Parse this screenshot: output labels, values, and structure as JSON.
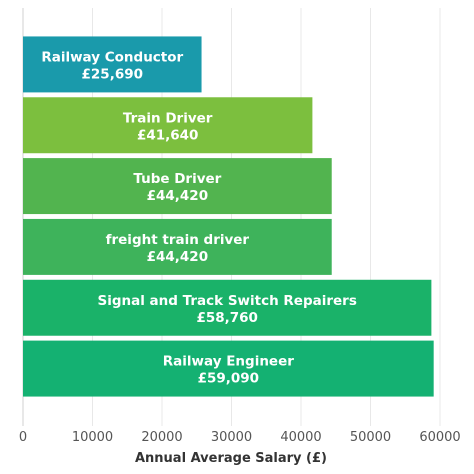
{
  "chart_data": {
    "type": "bar",
    "orientation": "horizontal",
    "title": "",
    "xlabel": "Annual Average Salary (£)",
    "ylabel": "",
    "xlim": [
      0,
      60000
    ],
    "xticks": [
      0,
      10000,
      20000,
      30000,
      40000,
      50000,
      60000
    ],
    "grid": true,
    "legend": "none",
    "bars": [
      {
        "category": "Railway Conductor",
        "value": 25690,
        "value_label": "£25,690",
        "color": "#1a9aab"
      },
      {
        "category": "Train Driver",
        "value": 41640,
        "value_label": "£41,640",
        "color": "#7cbf3e"
      },
      {
        "category": "Tube Driver",
        "value": 44420,
        "value_label": "£44,420",
        "color": "#52b44f"
      },
      {
        "category": "freight train driver",
        "value": 44420,
        "value_label": "£44,420",
        "color": "#3eb35b"
      },
      {
        "category": "Signal and Track Switch Repairers",
        "value": 58760,
        "value_label": "£58,760",
        "color": "#1ab269"
      },
      {
        "category": "Railway Engineer",
        "value": 59090,
        "value_label": "£59,090",
        "color": "#14b172"
      }
    ]
  }
}
